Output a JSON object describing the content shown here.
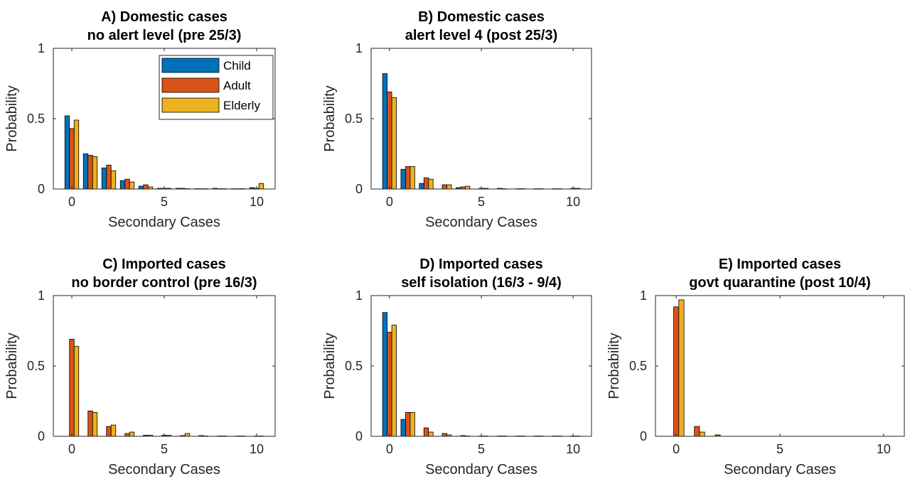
{
  "colors": {
    "child": "#0072BD",
    "adult": "#D95319",
    "elderly": "#EDB120",
    "axis": "#262626"
  },
  "chart_data": [
    {
      "type": "bar",
      "title_line1": "A) Domestic cases",
      "title_line2": "no alert level (pre 25/3)",
      "xlabel": "Secondary Cases",
      "ylabel": "Probability",
      "xlim": [
        -1,
        11
      ],
      "ylim": [
        0,
        1
      ],
      "xticks": [
        0,
        5,
        10
      ],
      "yticks": [
        0,
        0.5,
        1
      ],
      "ytick_labels": [
        "0",
        "0.5",
        "1"
      ],
      "legend": {
        "location": "top-right",
        "entries": [
          "Child",
          "Adult",
          "Elderly"
        ]
      },
      "x": [
        0,
        1,
        2,
        3,
        4,
        5,
        6,
        7,
        8,
        9,
        10
      ],
      "series": [
        {
          "name": "Child",
          "values": [
            0.52,
            0.25,
            0.15,
            0.06,
            0.02,
            0.005,
            0.005,
            0.002,
            0.005,
            0.002,
            0.01
          ]
        },
        {
          "name": "Adult",
          "values": [
            0.43,
            0.24,
            0.17,
            0.07,
            0.03,
            0.005,
            0.005,
            0.002,
            0.002,
            0.002,
            0.005
          ]
        },
        {
          "name": "Elderly",
          "values": [
            0.49,
            0.23,
            0.13,
            0.05,
            0.015,
            0.005,
            0.002,
            0.002,
            0.002,
            0.002,
            0.04
          ]
        }
      ]
    },
    {
      "type": "bar",
      "title_line1": "B) Domestic cases",
      "title_line2": "alert level 4 (post 25/3)",
      "xlabel": "Secondary Cases",
      "ylabel": "Probability",
      "xlim": [
        -1,
        11
      ],
      "ylim": [
        0,
        1
      ],
      "xticks": [
        0,
        5,
        10
      ],
      "yticks": [
        0,
        0.5,
        1
      ],
      "ytick_labels": [
        "0",
        "0.5",
        "1"
      ],
      "x": [
        0,
        1,
        2,
        3,
        4,
        5,
        6,
        7,
        8,
        9,
        10
      ],
      "series": [
        {
          "name": "Child",
          "values": [
            0.82,
            0.14,
            0.04,
            0.0,
            0.01,
            0.0,
            0.0,
            0.0,
            0.0,
            0.0,
            0.0
          ]
        },
        {
          "name": "Adult",
          "values": [
            0.69,
            0.16,
            0.08,
            0.03,
            0.015,
            0.005,
            0.005,
            0.002,
            0.002,
            0.002,
            0.005
          ]
        },
        {
          "name": "Elderly",
          "values": [
            0.65,
            0.16,
            0.07,
            0.03,
            0.02,
            0.005,
            0.002,
            0.002,
            0.002,
            0.002,
            0.005
          ]
        }
      ]
    },
    {
      "type": "bar",
      "title_line1": "C) Imported cases",
      "title_line2": "no border control (pre 16/3)",
      "xlabel": "Secondary Cases",
      "ylabel": "Probability",
      "xlim": [
        -1,
        11
      ],
      "ylim": [
        0,
        1
      ],
      "xticks": [
        0,
        5,
        10
      ],
      "yticks": [
        0,
        0.5,
        1
      ],
      "ytick_labels": [
        "0",
        "0.5",
        "1"
      ],
      "x": [
        0,
        1,
        2,
        3,
        4,
        5,
        6,
        7,
        8,
        9,
        10
      ],
      "series": [
        {
          "name": "Child",
          "values": [
            0,
            0,
            0,
            0,
            0,
            0,
            0,
            0,
            0,
            0,
            0
          ]
        },
        {
          "name": "Adult",
          "values": [
            0.69,
            0.18,
            0.07,
            0.02,
            0.008,
            0.008,
            0.005,
            0.005,
            0.002,
            0.002,
            0.002
          ]
        },
        {
          "name": "Elderly",
          "values": [
            0.64,
            0.17,
            0.08,
            0.03,
            0.008,
            0.008,
            0.02,
            0.002,
            0.002,
            0.002,
            0.002
          ]
        }
      ]
    },
    {
      "type": "bar",
      "title_line1": "D) Imported cases",
      "title_line2": "self isolation (16/3 - 9/4)",
      "xlabel": "Secondary Cases",
      "ylabel": "Probability",
      "xlim": [
        -1,
        11
      ],
      "ylim": [
        0,
        1
      ],
      "xticks": [
        0,
        5,
        10
      ],
      "yticks": [
        0,
        0.5,
        1
      ],
      "ytick_labels": [
        "0",
        "0.5",
        "1"
      ],
      "x": [
        0,
        1,
        2,
        3,
        4,
        5,
        6,
        7,
        8,
        9,
        10
      ],
      "series": [
        {
          "name": "Child",
          "values": [
            0.88,
            0.12,
            0.0,
            0.0,
            0.0,
            0.0,
            0.0,
            0.0,
            0.0,
            0.0,
            0.0
          ]
        },
        {
          "name": "Adult",
          "values": [
            0.74,
            0.17,
            0.06,
            0.02,
            0.005,
            0.002,
            0.002,
            0.002,
            0.002,
            0.002,
            0.002
          ]
        },
        {
          "name": "Elderly",
          "values": [
            0.79,
            0.17,
            0.03,
            0.01,
            0.002,
            0.002,
            0.002,
            0.002,
            0.002,
            0.002,
            0.002
          ]
        }
      ]
    },
    {
      "type": "bar",
      "title_line1": "E) Imported cases",
      "title_line2": "govt quarantine (post 10/4)",
      "xlabel": "Secondary Cases",
      "ylabel": "Probability",
      "xlim": [
        -1,
        11
      ],
      "ylim": [
        0,
        1
      ],
      "xticks": [
        0,
        5,
        10
      ],
      "yticks": [
        0,
        0.5,
        1
      ],
      "ytick_labels": [
        "0",
        "0.5",
        "1"
      ],
      "x": [
        0,
        1,
        2,
        3,
        4,
        5,
        6,
        7,
        8,
        9,
        10
      ],
      "series": [
        {
          "name": "Child",
          "values": [
            0,
            0,
            0,
            0,
            0,
            0,
            0,
            0,
            0,
            0,
            0
          ]
        },
        {
          "name": "Adult",
          "values": [
            0.92,
            0.07,
            0.01,
            0.0,
            0.0,
            0.0,
            0.0,
            0.0,
            0.0,
            0.0,
            0.0
          ]
        },
        {
          "name": "Elderly",
          "values": [
            0.97,
            0.03,
            0.0,
            0.0,
            0.0,
            0.0,
            0.0,
            0.0,
            0.0,
            0.0,
            0.0
          ]
        }
      ]
    }
  ]
}
